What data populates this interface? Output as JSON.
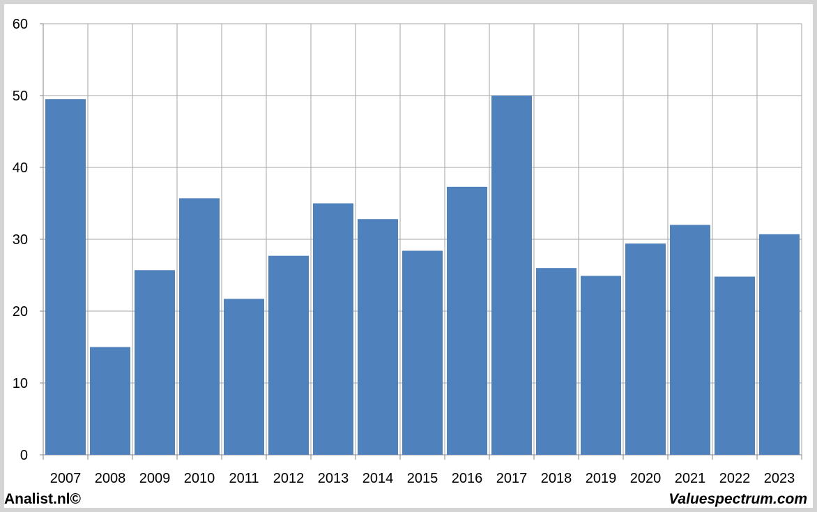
{
  "chart_data": {
    "type": "bar",
    "title": "",
    "xlabel": "",
    "ylabel": "",
    "categories": [
      "2007",
      "2008",
      "2009",
      "2010",
      "2011",
      "2012",
      "2013",
      "2014",
      "2015",
      "2016",
      "2017",
      "2018",
      "2019",
      "2020",
      "2021",
      "2022",
      "2023"
    ],
    "values": [
      49.5,
      15.0,
      25.7,
      35.7,
      21.7,
      27.7,
      35.0,
      32.8,
      28.4,
      37.3,
      50.0,
      26.0,
      24.9,
      29.4,
      32.0,
      24.8,
      30.7
    ],
    "ylim": [
      0,
      60
    ],
    "yticks": [
      0,
      10,
      20,
      30,
      40,
      50,
      60
    ],
    "grid": true,
    "bar_color": "#4f81bd",
    "grid_color": "#a6a6a6"
  },
  "footer": {
    "left": "Analist.nl©",
    "right": "Valuespectrum.com"
  }
}
